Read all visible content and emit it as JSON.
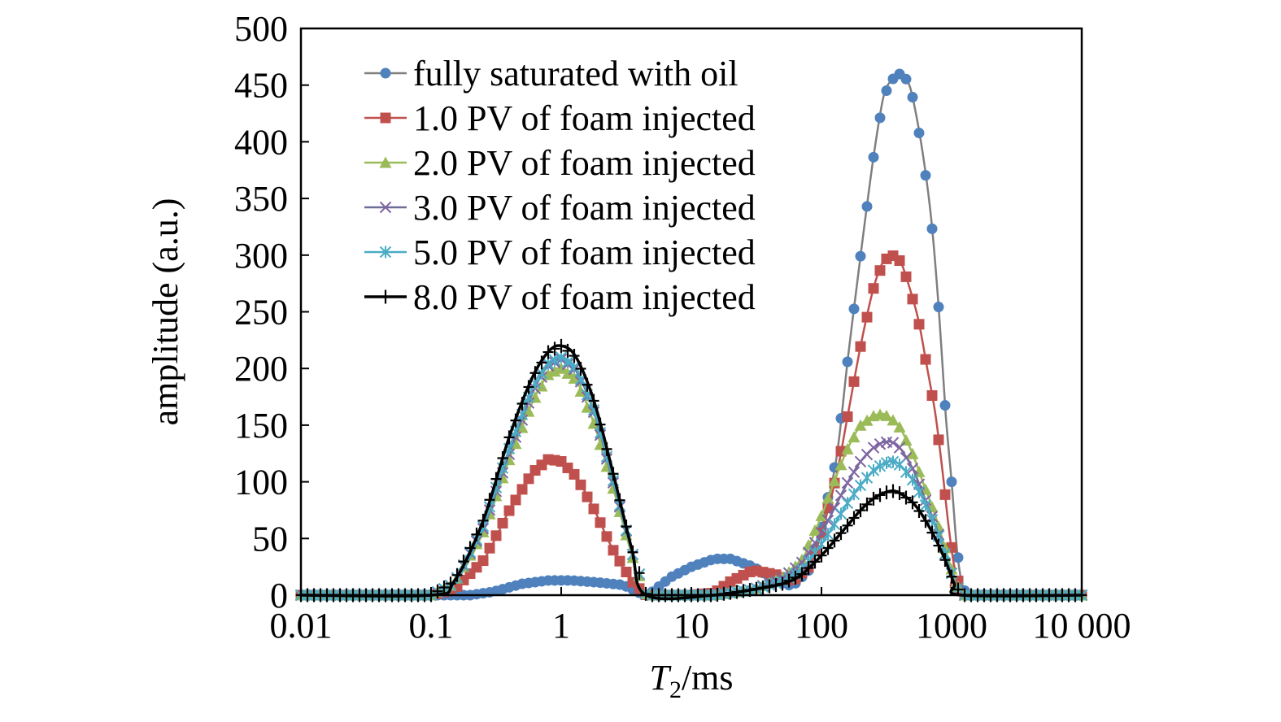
{
  "chart_data": {
    "type": "line",
    "title": "",
    "xlabel": "/ms",
    "xlabel_var": "T",
    "xlabel_sub": "2",
    "ylabel": "amplitude (a.u.)",
    "xscale": "log",
    "xlim": [
      0.01,
      10000
    ],
    "ylim": [
      0,
      500
    ],
    "x_ticks": [
      {
        "value": 0.01,
        "label": "0.01"
      },
      {
        "value": 0.1,
        "label": "0.1"
      },
      {
        "value": 1,
        "label": "1"
      },
      {
        "value": 10,
        "label": "10"
      },
      {
        "value": 100,
        "label": "100"
      },
      {
        "value": 1000,
        "label": "1000"
      },
      {
        "value": 10000,
        "label": "10 000"
      }
    ],
    "y_ticks": [
      {
        "value": 0,
        "label": "0"
      },
      {
        "value": 50,
        "label": "50"
      },
      {
        "value": 100,
        "label": "100"
      },
      {
        "value": 150,
        "label": "150"
      },
      {
        "value": 200,
        "label": "200"
      },
      {
        "value": 250,
        "label": "250"
      },
      {
        "value": 300,
        "label": "300"
      },
      {
        "value": 350,
        "label": "350"
      },
      {
        "value": 400,
        "label": "400"
      },
      {
        "value": 450,
        "label": "450"
      },
      {
        "value": 500,
        "label": "500"
      }
    ],
    "grid": false,
    "legend": {
      "position": "top-left"
    },
    "series": [
      {
        "name": "fully saturated with oil",
        "color": "#4f81bd",
        "line_color": "#7f7f7f",
        "marker": "circle",
        "points": [
          [
            0.01,
            0
          ],
          [
            0.2,
            0
          ],
          [
            0.3,
            3
          ],
          [
            0.5,
            10
          ],
          [
            0.8,
            13
          ],
          [
            1.2,
            13
          ],
          [
            2,
            11
          ],
          [
            3,
            9
          ],
          [
            4,
            2
          ],
          [
            4.5,
            0
          ],
          [
            5,
            3
          ],
          [
            7,
            16
          ],
          [
            10,
            25
          ],
          [
            15,
            32
          ],
          [
            20,
            32
          ],
          [
            30,
            25
          ],
          [
            45,
            12
          ],
          [
            60,
            8
          ],
          [
            80,
            22
          ],
          [
            100,
            60
          ],
          [
            130,
            120
          ],
          [
            160,
            210
          ],
          [
            200,
            300
          ],
          [
            250,
            385
          ],
          [
            300,
            440
          ],
          [
            350,
            455
          ],
          [
            400,
            460
          ],
          [
            450,
            455
          ],
          [
            500,
            440
          ],
          [
            600,
            390
          ],
          [
            700,
            330
          ],
          [
            800,
            250
          ],
          [
            900,
            160
          ],
          [
            1000,
            100
          ],
          [
            1100,
            40
          ],
          [
            1200,
            10
          ],
          [
            1300,
            0
          ],
          [
            10000,
            0
          ]
        ]
      },
      {
        "name": "1.0 PV of foam injected",
        "color": "#c0504d",
        "line_color": "#c0504d",
        "marker": "square",
        "points": [
          [
            0.01,
            0
          ],
          [
            0.1,
            0
          ],
          [
            0.15,
            5
          ],
          [
            0.25,
            30
          ],
          [
            0.4,
            75
          ],
          [
            0.6,
            108
          ],
          [
            0.8,
            120
          ],
          [
            1,
            118
          ],
          [
            1.3,
            105
          ],
          [
            1.8,
            75
          ],
          [
            2.5,
            40
          ],
          [
            3.5,
            12
          ],
          [
            4.5,
            0
          ],
          [
            10,
            0
          ],
          [
            15,
            2
          ],
          [
            20,
            12
          ],
          [
            30,
            22
          ],
          [
            45,
            18
          ],
          [
            60,
            12
          ],
          [
            80,
            25
          ],
          [
            100,
            55
          ],
          [
            130,
            105
          ],
          [
            160,
            160
          ],
          [
            200,
            220
          ],
          [
            250,
            270
          ],
          [
            300,
            295
          ],
          [
            350,
            300
          ],
          [
            400,
            295
          ],
          [
            450,
            280
          ],
          [
            550,
            245
          ],
          [
            650,
            200
          ],
          [
            750,
            160
          ],
          [
            850,
            110
          ],
          [
            950,
            60
          ],
          [
            1050,
            25
          ],
          [
            1200,
            0
          ],
          [
            10000,
            0
          ]
        ]
      },
      {
        "name": "2.0 PV of foam injected",
        "color": "#9bbb59",
        "line_color": "#9bbb59",
        "marker": "triangle",
        "points": [
          [
            0.01,
            0
          ],
          [
            0.1,
            0
          ],
          [
            0.15,
            10
          ],
          [
            0.25,
            55
          ],
          [
            0.4,
            120
          ],
          [
            0.6,
            170
          ],
          [
            0.8,
            195
          ],
          [
            1,
            200
          ],
          [
            1.3,
            190
          ],
          [
            1.8,
            150
          ],
          [
            2.5,
            95
          ],
          [
            3.5,
            35
          ],
          [
            4.5,
            0
          ],
          [
            15,
            0
          ],
          [
            30,
            5
          ],
          [
            50,
            15
          ],
          [
            70,
            30
          ],
          [
            100,
            70
          ],
          [
            130,
            105
          ],
          [
            160,
            130
          ],
          [
            200,
            150
          ],
          [
            250,
            158
          ],
          [
            300,
            160
          ],
          [
            350,
            155
          ],
          [
            400,
            148
          ],
          [
            500,
            125
          ],
          [
            600,
            100
          ],
          [
            750,
            70
          ],
          [
            900,
            40
          ],
          [
            1050,
            15
          ],
          [
            1200,
            0
          ],
          [
            10000,
            0
          ]
        ]
      },
      {
        "name": "3.0 PV of foam injected",
        "color": "#8064a2",
        "line_color": "#6d6d99",
        "marker": "x",
        "points": [
          [
            0.01,
            0
          ],
          [
            0.1,
            0
          ],
          [
            0.15,
            10
          ],
          [
            0.25,
            58
          ],
          [
            0.4,
            125
          ],
          [
            0.6,
            178
          ],
          [
            0.8,
            203
          ],
          [
            1,
            208
          ],
          [
            1.3,
            198
          ],
          [
            1.8,
            160
          ],
          [
            2.5,
            100
          ],
          [
            3.5,
            38
          ],
          [
            4.5,
            0
          ],
          [
            15,
            0
          ],
          [
            30,
            5
          ],
          [
            50,
            15
          ],
          [
            70,
            28
          ],
          [
            100,
            55
          ],
          [
            130,
            80
          ],
          [
            160,
            100
          ],
          [
            200,
            118
          ],
          [
            250,
            130
          ],
          [
            300,
            135
          ],
          [
            350,
            135
          ],
          [
            400,
            130
          ],
          [
            500,
            112
          ],
          [
            600,
            90
          ],
          [
            750,
            62
          ],
          [
            900,
            35
          ],
          [
            1050,
            12
          ],
          [
            1200,
            0
          ],
          [
            10000,
            0
          ]
        ]
      },
      {
        "name": "5.0 PV of foam injected",
        "color": "#4bacc6",
        "line_color": "#4bacc6",
        "marker": "star",
        "points": [
          [
            0.01,
            0
          ],
          [
            0.1,
            0
          ],
          [
            0.15,
            10
          ],
          [
            0.25,
            60
          ],
          [
            0.4,
            130
          ],
          [
            0.6,
            183
          ],
          [
            0.8,
            205
          ],
          [
            1,
            210
          ],
          [
            1.3,
            200
          ],
          [
            1.8,
            162
          ],
          [
            2.5,
            102
          ],
          [
            3.5,
            38
          ],
          [
            4.5,
            0
          ],
          [
            15,
            0
          ],
          [
            30,
            5
          ],
          [
            50,
            12
          ],
          [
            70,
            22
          ],
          [
            100,
            45
          ],
          [
            130,
            65
          ],
          [
            160,
            82
          ],
          [
            200,
            97
          ],
          [
            250,
            110
          ],
          [
            300,
            116
          ],
          [
            350,
            118
          ],
          [
            400,
            115
          ],
          [
            500,
            102
          ],
          [
            600,
            85
          ],
          [
            750,
            60
          ],
          [
            900,
            35
          ],
          [
            1050,
            12
          ],
          [
            1200,
            0
          ],
          [
            10000,
            0
          ]
        ]
      },
      {
        "name": "8.0 PV of foam injected",
        "color": "#000000",
        "line_color": "#000000",
        "marker": "plus",
        "points": [
          [
            0.01,
            0
          ],
          [
            0.1,
            0
          ],
          [
            0.15,
            12
          ],
          [
            0.25,
            65
          ],
          [
            0.4,
            140
          ],
          [
            0.6,
            192
          ],
          [
            0.8,
            215
          ],
          [
            1,
            220
          ],
          [
            1.3,
            210
          ],
          [
            1.8,
            170
          ],
          [
            2.5,
            108
          ],
          [
            3.5,
            40
          ],
          [
            4.5,
            0
          ],
          [
            15,
            0
          ],
          [
            30,
            5
          ],
          [
            50,
            10
          ],
          [
            70,
            18
          ],
          [
            100,
            35
          ],
          [
            130,
            50
          ],
          [
            160,
            62
          ],
          [
            200,
            75
          ],
          [
            250,
            85
          ],
          [
            300,
            90
          ],
          [
            350,
            92
          ],
          [
            400,
            90
          ],
          [
            500,
            82
          ],
          [
            600,
            70
          ],
          [
            750,
            50
          ],
          [
            900,
            30
          ],
          [
            1050,
            10
          ],
          [
            1200,
            0
          ],
          [
            10000,
            0
          ]
        ]
      }
    ]
  }
}
